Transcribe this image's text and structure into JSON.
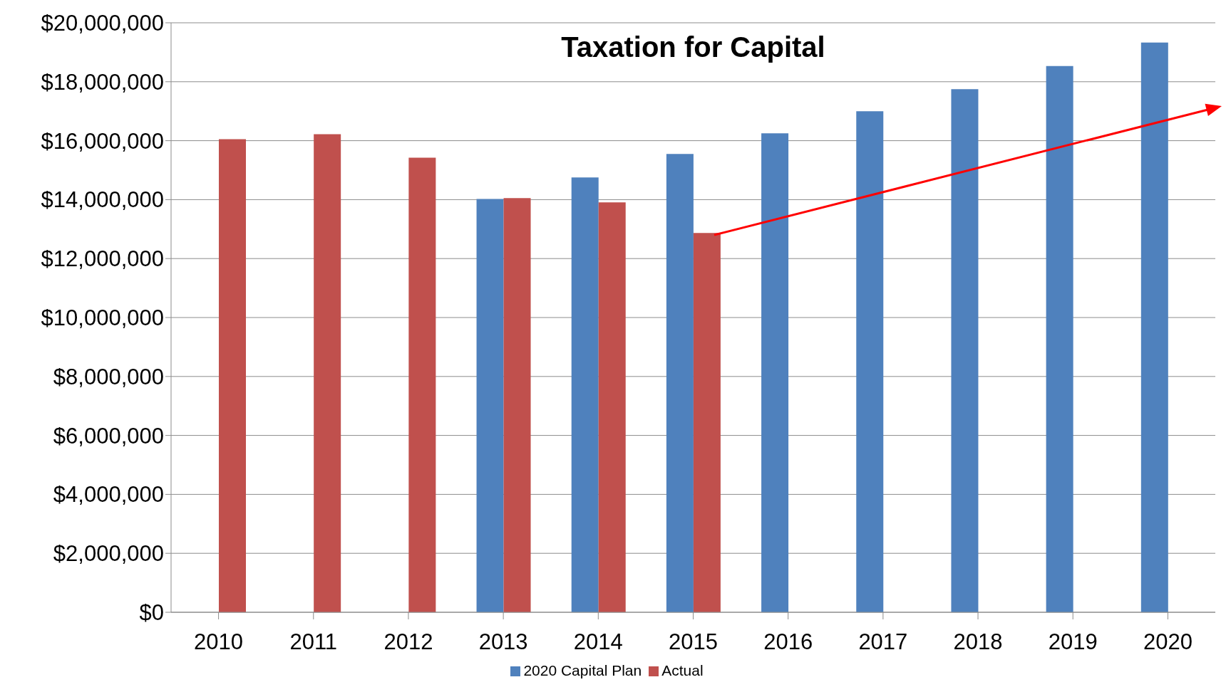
{
  "chart_data": {
    "type": "bar",
    "title": "Taxation for Capital",
    "categories": [
      "2010",
      "2011",
      "2012",
      "2013",
      "2014",
      "2015",
      "2016",
      "2017",
      "2018",
      "2019",
      "2020"
    ],
    "series": [
      {
        "name": "2020 Capital Plan",
        "color": "#4f81bd",
        "values": [
          null,
          null,
          null,
          14020000,
          14750000,
          15550000,
          16250000,
          17000000,
          17750000,
          18530000,
          19330000
        ]
      },
      {
        "name": "Actual",
        "color": "#c0504d",
        "values": [
          16050000,
          16220000,
          15420000,
          14050000,
          13910000,
          12870000,
          null,
          null,
          null,
          null,
          null
        ]
      }
    ],
    "ylim": [
      0,
      20000000
    ],
    "yticks": [
      {
        "value": 0,
        "label": "$0"
      },
      {
        "value": 2000000,
        "label": "$2,000,000"
      },
      {
        "value": 4000000,
        "label": "$4,000,000"
      },
      {
        "value": 6000000,
        "label": "$6,000,000"
      },
      {
        "value": 8000000,
        "label": "$8,000,000"
      },
      {
        "value": 10000000,
        "label": "$10,000,000"
      },
      {
        "value": 12000000,
        "label": "$12,000,000"
      },
      {
        "value": 14000000,
        "label": "$14,000,000"
      },
      {
        "value": 16000000,
        "label": "$16,000,000"
      },
      {
        "value": 18000000,
        "label": "$18,000,000"
      },
      {
        "value": 20000000,
        "label": "$20,000,000"
      }
    ],
    "grid": "y",
    "legend": "bottom"
  }
}
